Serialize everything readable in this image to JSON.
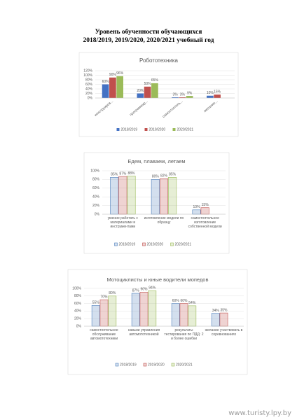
{
  "heading": [
    "Уровень обученности обучающихся",
    "2018/2019, 2019/2020, 2020/2021 учебный год"
  ],
  "watermark": "www.turisty.lpy.by",
  "chart_data": [
    {
      "type": "bar",
      "title": "Робототехника",
      "bar_style": "solid",
      "grid": true,
      "categories": [
        "конструиров...",
        "программир...",
        "самостоятель...",
        "желание..."
      ],
      "series": [
        {
          "name": "2018/2019",
          "color": "#4472c4",
          "values": [
            60,
            20,
            3,
            10
          ],
          "value_labels": [
            "60%",
            "20%",
            "3%",
            "10%"
          ]
        },
        {
          "name": "2019/2020",
          "color": "#c0504d",
          "values": [
            90,
            50,
            3,
            15
          ],
          "value_labels": [
            "90%",
            "50%",
            "3%",
            "15%"
          ]
        },
        {
          "name": "2020/2021",
          "color": "#9bbb59",
          "values": [
            96,
            65,
            9,
            null
          ],
          "value_labels": [
            "96%",
            "65%",
            "9%",
            null
          ]
        }
      ],
      "ylim": [
        0,
        120
      ],
      "yticks": [
        {
          "value": 0,
          "label": "0%"
        },
        {
          "value": 20,
          "label": "20%"
        },
        {
          "value": 40,
          "label": "40%"
        },
        {
          "value": 60,
          "label": "60%"
        },
        {
          "value": 80,
          "label": "80%"
        },
        {
          "value": 100,
          "label": "100%"
        },
        {
          "value": 120,
          "label": "120%"
        }
      ]
    },
    {
      "type": "bar",
      "title": "Едем, плаваем, летаем",
      "bar_style": "light",
      "grid": true,
      "categories": [
        "умение работать с материалами и инструментами",
        "изготовление модели по образцу",
        "самостоятельное изготовление собственной модели"
      ],
      "series": [
        {
          "name": "2018/2019",
          "color": "#4f81bd",
          "values": [
            85,
            80,
            10
          ],
          "value_labels": [
            "85%",
            "80%",
            "10%"
          ]
        },
        {
          "name": "2019/2020",
          "color": "#c0504d",
          "values": [
            87,
            82,
            15
          ],
          "value_labels": [
            "87%",
            "82%",
            "15%"
          ]
        },
        {
          "name": "2020/2021",
          "color": "#9bbb59",
          "values": [
            88,
            85,
            null
          ],
          "value_labels": [
            "88%",
            "85%",
            null
          ]
        }
      ],
      "ylim": [
        0,
        100
      ],
      "yticks": [
        {
          "value": 0,
          "label": "0%"
        },
        {
          "value": 20,
          "label": "20%"
        },
        {
          "value": 40,
          "label": "40%"
        },
        {
          "value": 60,
          "label": "60%"
        },
        {
          "value": 80,
          "label": "80%"
        },
        {
          "value": 100,
          "label": "100%"
        }
      ]
    },
    {
      "type": "bar",
      "title": "Мотоциклисты и юные водители мопедов",
      "bar_style": "light",
      "grid": true,
      "categories": [
        "самостоятельное обслуживание автомототехники",
        "навыки управления автомототехникой",
        "результаты тестирования по ПДД: 2 и более ошибки",
        "желание участвовать в соревнованиях"
      ],
      "series": [
        {
          "name": "2018/2019",
          "color": "#4f81bd",
          "values": [
            55,
            87,
            60,
            34
          ],
          "value_labels": [
            "55%",
            "87%",
            "60%",
            "34%"
          ]
        },
        {
          "name": "2019/2020",
          "color": "#c0504d",
          "values": [
            70,
            90,
            60,
            35
          ],
          "value_labels": [
            "70%",
            "90%",
            "60%",
            "35%"
          ]
        },
        {
          "name": "2020/2021",
          "color": "#9bbb59",
          "values": [
            80,
            94,
            54,
            null
          ],
          "value_labels": [
            "80%",
            "94%",
            "54%",
            null
          ]
        }
      ],
      "ylim": [
        0,
        100
      ],
      "yticks": [
        {
          "value": 0,
          "label": "0%"
        },
        {
          "value": 20,
          "label": "20%"
        },
        {
          "value": 40,
          "label": "40%"
        },
        {
          "value": 60,
          "label": "60%"
        },
        {
          "value": 80,
          "label": "80%"
        },
        {
          "value": 100,
          "label": "100%"
        }
      ]
    }
  ]
}
